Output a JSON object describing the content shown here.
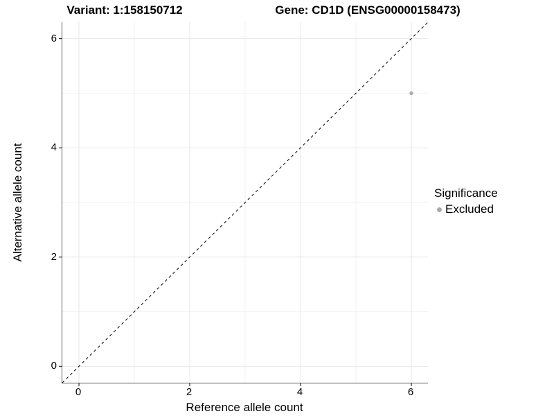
{
  "titles": {
    "left": "Variant: 1:158150712",
    "right": "Gene: CD1D (ENSG00000158473)"
  },
  "chart_data": {
    "type": "scatter",
    "title_left": "Variant: 1:158150712",
    "title_right": "Gene: CD1D (ENSG00000158473)",
    "xlabel": "Reference allele count",
    "ylabel": "Alternative allele count",
    "xlim": [
      -0.3,
      6.3
    ],
    "ylim": [
      -0.3,
      6.3
    ],
    "x_ticks": [
      0,
      2,
      4,
      6
    ],
    "y_ticks": [
      0,
      2,
      4,
      6
    ],
    "x_minor_ticks": [
      1,
      3,
      5
    ],
    "y_minor_ticks": [
      1,
      3,
      5
    ],
    "grid": true,
    "identity_line": {
      "style": "dashed",
      "equation": "y = x"
    },
    "points": [
      {
        "x": 6,
        "y": 5,
        "series": "Excluded"
      }
    ],
    "legend": {
      "title": "Significance",
      "position": "right",
      "entries": [
        {
          "label": "Excluded",
          "color": "#aaaaaa"
        }
      ]
    }
  },
  "colors": {
    "background": "#ffffff",
    "point": "#aaaaaa",
    "axis_line": "#555555",
    "tick_mark": "#333333",
    "grid_major": "#e7e7e7",
    "grid_minor": "#f2f2f2",
    "identity_line": "#000000",
    "text": "#000000"
  }
}
